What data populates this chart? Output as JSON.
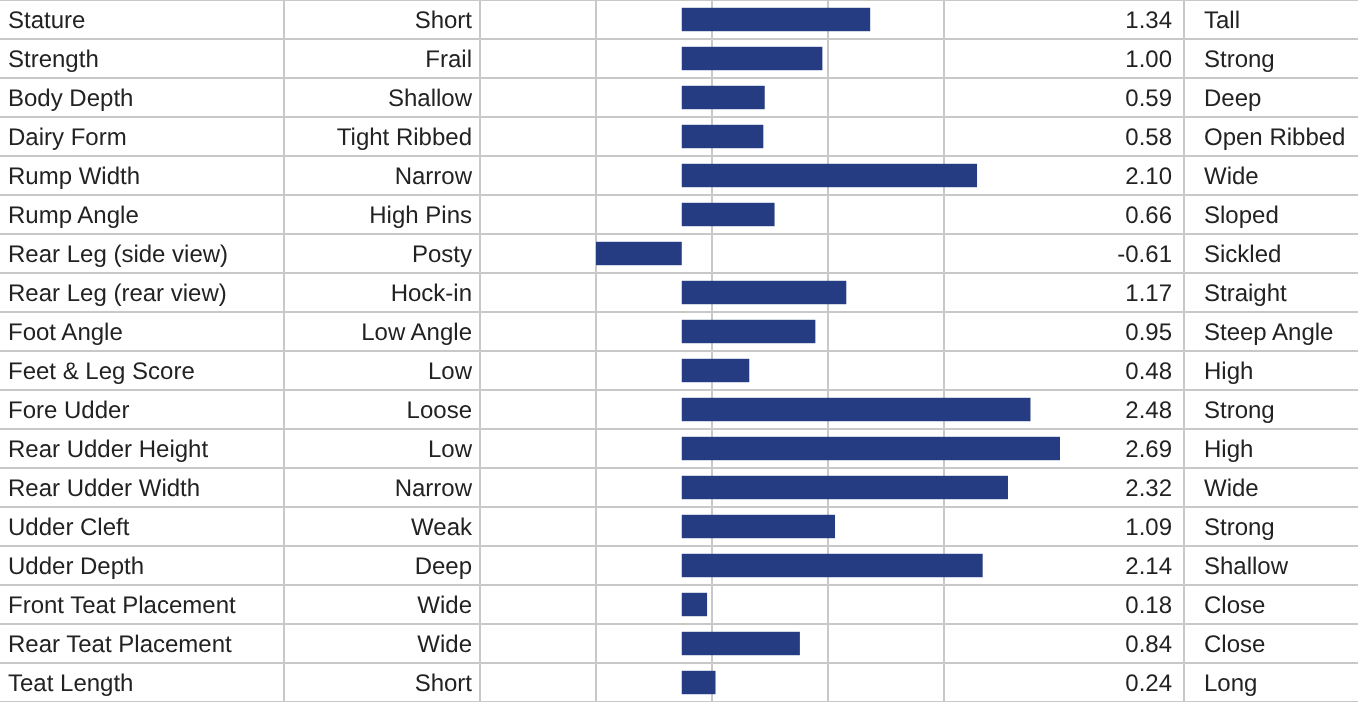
{
  "chart_data": {
    "type": "bar",
    "orientation": "horizontal",
    "categories": [
      "Stature",
      "Strength",
      "Body Depth",
      "Dairy Form",
      "Rump Width",
      "Rump Angle",
      "Rear Leg (side view)",
      "Rear Leg (rear view)",
      "Foot Angle",
      "Feet & Leg Score",
      "Fore Udder",
      "Rear Udder Height",
      "Rear Udder Width",
      "Udder Cleft",
      "Udder Depth",
      "Front Teat Placement",
      "Rear Teat Placement",
      "Teat Length"
    ],
    "y_categories": [
      "Short",
      "Frail",
      "Shallow",
      "Tight Ribbed",
      "Narrow",
      "High Pins",
      "Posty",
      "Hock-in",
      "Low Angle",
      "Low",
      "Loose",
      "Low",
      "Narrow",
      "Weak",
      "Deep",
      "Wide",
      "Wide",
      "Short"
    ],
    "y2_categories": [
      "Tall",
      "Strong",
      "Deep",
      "Open Ribbed",
      "Wide",
      "Sloped",
      "Sickled",
      "Straight",
      "Steep Angle",
      "High",
      "Strong",
      "High",
      "Wide",
      "Strong",
      "Shallow",
      "Close",
      "Close",
      "Long"
    ],
    "values": [
      1.34,
      1.0,
      0.59,
      0.58,
      2.1,
      0.66,
      -0.61,
      1.17,
      0.95,
      0.48,
      2.48,
      2.69,
      2.32,
      1.09,
      2.14,
      0.18,
      0.84,
      0.24
    ],
    "value_labels": [
      "1.34",
      "1.00",
      "0.59",
      "0.58",
      "2.10",
      "0.66",
      "-0.61",
      "1.17",
      "0.95",
      "0.48",
      "2.48",
      "2.69",
      "2.32",
      "1.09",
      "2.14",
      "0.18",
      "0.84",
      "0.24"
    ],
    "color": "#253c82"
  }
}
